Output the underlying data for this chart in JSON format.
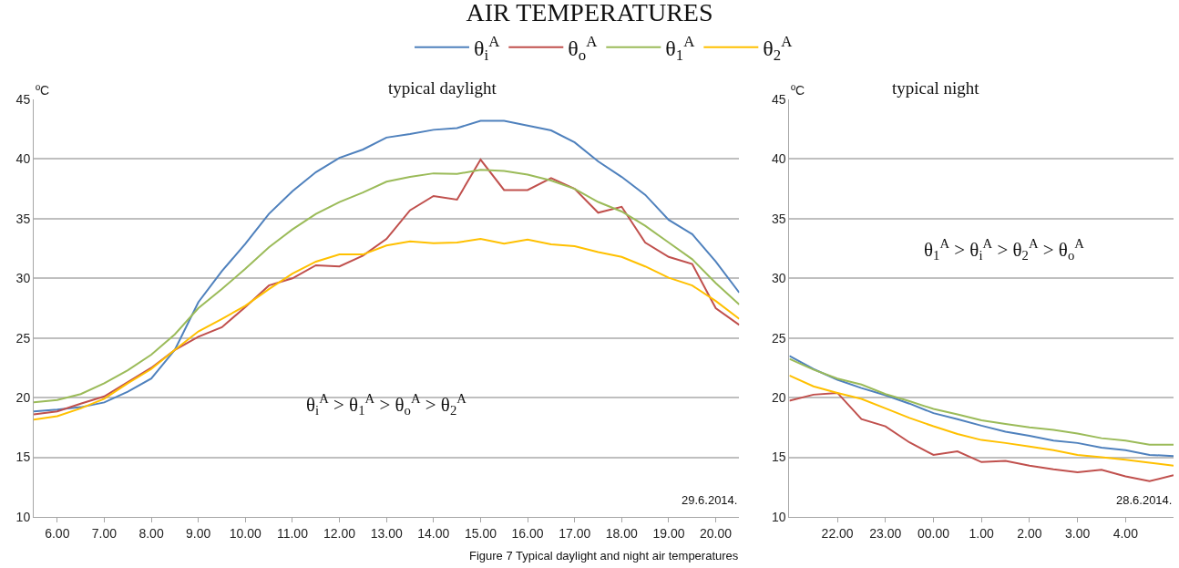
{
  "chart_data": [
    {
      "type": "line",
      "title": "AIR TEMPERATURES",
      "subtitle": "typical daylight",
      "ylabel": "ºC",
      "legend": "top",
      "grid": "y",
      "marker": "none",
      "line_style": "solid",
      "x": [
        5.5,
        6,
        6.5,
        7,
        7.5,
        8,
        8.5,
        9,
        9.5,
        10,
        10.5,
        11,
        11.5,
        12,
        12.5,
        13,
        13.5,
        14,
        14.5,
        15,
        15.5,
        16,
        16.5,
        17,
        17.5,
        18,
        18.5,
        19,
        19.5,
        20,
        20.5
      ],
      "xlim": [
        5.5,
        20.5
      ],
      "xticks": [
        {
          "value": 6,
          "label": "6.00"
        },
        {
          "value": 7,
          "label": "7.00"
        },
        {
          "value": 8,
          "label": "8.00"
        },
        {
          "value": 9,
          "label": "9.00"
        },
        {
          "value": 10,
          "label": "10.00"
        },
        {
          "value": 11,
          "label": "11.00"
        },
        {
          "value": 12,
          "label": "12.00"
        },
        {
          "value": 13,
          "label": "13.00"
        },
        {
          "value": 14,
          "label": "14.00"
        },
        {
          "value": 15,
          "label": "15.00"
        },
        {
          "value": 16,
          "label": "16.00"
        },
        {
          "value": 17,
          "label": "17.00"
        },
        {
          "value": 18,
          "label": "18.00"
        },
        {
          "value": 19,
          "label": "19.00"
        },
        {
          "value": 20,
          "label": "20.00"
        }
      ],
      "ylim": [
        10,
        45
      ],
      "yticks": [
        10,
        15,
        20,
        25,
        30,
        35,
        40,
        45
      ],
      "series": [
        {
          "name": "θ$_{i}$$^{A}$",
          "color": "#4f81bd",
          "values": [
            18.85,
            19.0,
            19.2,
            19.6,
            20.5,
            21.6,
            24.0,
            28.0,
            30.6,
            32.9,
            35.4,
            37.3,
            38.9,
            40.1,
            40.8,
            41.8,
            42.1,
            42.45,
            42.6,
            43.2,
            43.2,
            42.8,
            42.4,
            41.4,
            39.8,
            38.5,
            37.0,
            34.9,
            33.7,
            31.4,
            28.8
          ]
        },
        {
          "name": "θ$_{o}$$^{A}$",
          "color": "#c0504d",
          "values": [
            18.6,
            18.85,
            19.5,
            20.1,
            21.3,
            22.5,
            24.0,
            25.1,
            25.9,
            27.6,
            29.4,
            30.0,
            31.1,
            31.0,
            31.9,
            33.3,
            35.7,
            36.9,
            36.6,
            39.95,
            37.4,
            37.4,
            38.4,
            37.5,
            35.5,
            36.0,
            33.0,
            31.8,
            31.2,
            27.5,
            26.1
          ]
        },
        {
          "name": "θ$_{1}$$^{A}$",
          "color": "#9bbb59",
          "values": [
            19.6,
            19.8,
            20.3,
            21.2,
            22.3,
            23.6,
            25.3,
            27.5,
            29.1,
            30.8,
            32.6,
            34.1,
            35.4,
            36.4,
            37.2,
            38.1,
            38.5,
            38.8,
            38.75,
            39.1,
            39.0,
            38.7,
            38.2,
            37.5,
            36.4,
            35.6,
            34.4,
            33.0,
            31.6,
            29.6,
            27.8
          ]
        },
        {
          "name": "θ$_{2}$$^{A}$",
          "color": "#ffc000",
          "values": [
            18.15,
            18.45,
            19.1,
            19.9,
            21.2,
            22.4,
            24.0,
            25.55,
            26.6,
            27.7,
            29.1,
            30.4,
            31.4,
            32.0,
            32.0,
            32.75,
            33.1,
            32.95,
            33.0,
            33.3,
            32.9,
            33.25,
            32.85,
            32.7,
            32.2,
            31.8,
            31.0,
            30.05,
            29.4,
            28.1,
            26.6
          ]
        }
      ],
      "annotations": [
        "θ$_{i}$$^{A}$ > θ$_{1}$$^{A}$ > θ$_{o}$$^{A}$ > θ$_{2}$$^{A}$",
        "29.6.2014.",
        "Figure 7 Typical daylight and night air temperatures"
      ]
    },
    {
      "type": "line",
      "title": "typical night",
      "ylabel": "ºC",
      "grid": "y",
      "marker": "none",
      "line_style": "solid",
      "categories": [
        null,
        null,
        "22.00",
        null,
        "23.00",
        null,
        "00.00",
        null,
        "1.00",
        null,
        "2.00",
        null,
        "3.00",
        null,
        "4.00",
        null,
        null
      ],
      "ylim": [
        10,
        45
      ],
      "yticks": [
        10,
        15,
        20,
        25,
        30,
        35,
        40,
        45
      ],
      "series": [
        {
          "color": "#4f81bd",
          "values": [
            23.5,
            22.4,
            21.5,
            20.8,
            20.2,
            19.5,
            18.7,
            18.2,
            17.65,
            17.15,
            16.8,
            16.4,
            16.2,
            15.8,
            15.6,
            15.2,
            15.1
          ]
        },
        {
          "color": "#c0504d",
          "values": [
            19.75,
            20.25,
            20.4,
            18.2,
            17.6,
            16.25,
            15.2,
            15.5,
            14.6,
            14.7,
            14.3,
            14.0,
            13.75,
            13.95,
            13.4,
            13.0,
            13.5
          ]
        },
        {
          "color": "#9bbb59",
          "values": [
            23.25,
            22.35,
            21.6,
            21.1,
            20.3,
            19.7,
            19.05,
            18.6,
            18.1,
            17.8,
            17.5,
            17.3,
            17.0,
            16.6,
            16.4,
            16.05,
            16.05
          ]
        },
        {
          "color": "#ffc000",
          "values": [
            21.85,
            20.95,
            20.4,
            19.9,
            19.1,
            18.3,
            17.6,
            16.95,
            16.45,
            16.2,
            15.9,
            15.6,
            15.2,
            15.0,
            14.8,
            14.55,
            14.3
          ]
        }
      ],
      "annotations": [
        "θ$_{1}$$^{A}$ > θ$_{i}$$^{A}$ > θ$_{2}$$^{A}$ > θ$_{o}$$^{A}$",
        "28.6.2014."
      ]
    }
  ]
}
